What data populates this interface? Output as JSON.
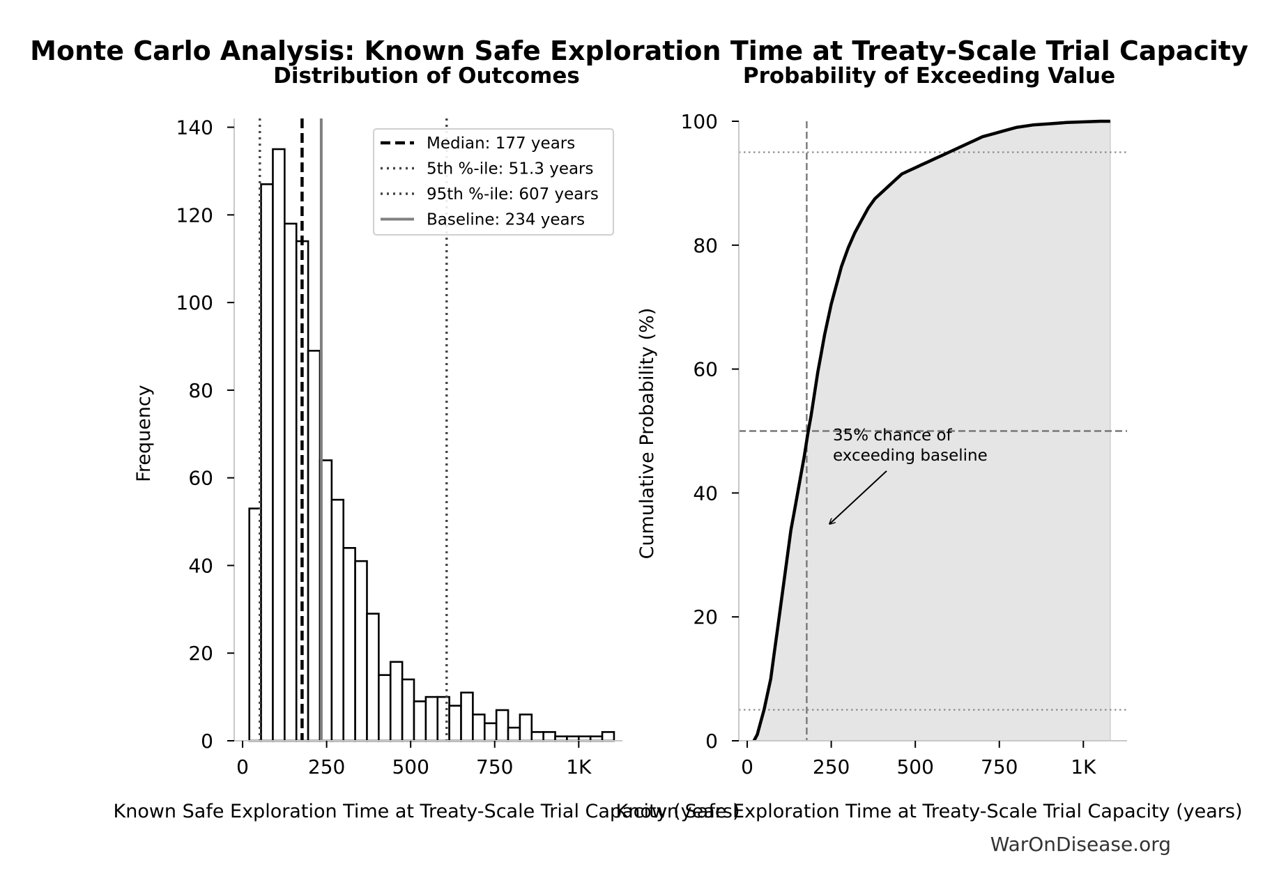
{
  "figure": {
    "title": "Monte Carlo Analysis: Known Safe Exploration Time at Treaty-Scale Trial Capacity",
    "watermark": "WarOnDisease.org"
  },
  "chart_data": [
    {
      "type": "bar",
      "title": "Distribution of Outcomes",
      "xlabel": "Known Safe Exploration Time at Treaty-Scale Trial Capacity (years)",
      "ylabel": "Frequency",
      "xlim": [
        -25,
        1130
      ],
      "ylim": [
        0,
        142
      ],
      "xticks": [
        0,
        250,
        500,
        750,
        1000
      ],
      "xtick_labels": [
        "0",
        "250",
        "500",
        "750",
        "1K"
      ],
      "yticks": [
        0,
        20,
        40,
        60,
        80,
        100,
        120,
        140
      ],
      "ytick_labels": [
        "0",
        "20",
        "40",
        "60",
        "80",
        "100",
        "120",
        "140"
      ],
      "bin_start": 20,
      "bin_width": 35,
      "values": [
        53,
        127,
        135,
        118,
        114,
        89,
        64,
        55,
        44,
        41,
        29,
        15,
        18,
        14,
        9,
        10,
        10,
        8,
        11,
        6,
        4,
        7,
        3,
        6,
        2,
        2,
        1,
        1,
        1,
        1,
        2
      ],
      "reference_lines": [
        {
          "label": "Median: 177 years",
          "value": 177,
          "style": "dashed",
          "color": "#000000"
        },
        {
          "label": "5th %-ile: 51.3 years",
          "value": 51.3,
          "style": "dotted",
          "color": "#444444"
        },
        {
          "label": "95th %-ile: 607 years",
          "value": 607,
          "style": "dotted",
          "color": "#444444"
        },
        {
          "label": "Baseline: 234 years",
          "value": 234,
          "style": "solid",
          "color": "#808080"
        }
      ],
      "legend": "top-right",
      "grid": false
    },
    {
      "type": "area",
      "title": "Probability of Exceeding Value",
      "xlabel": "Known Safe Exploration Time at Treaty-Scale Trial Capacity (years)",
      "ylabel": "Cumulative Probability (%)",
      "xlim": [
        -25,
        1130
      ],
      "ylim": [
        0,
        100
      ],
      "xticks": [
        0,
        250,
        500,
        750,
        1000
      ],
      "xtick_labels": [
        "0",
        "250",
        "500",
        "750",
        "1K"
      ],
      "yticks": [
        0,
        20,
        40,
        60,
        80,
        100
      ],
      "ytick_labels": [
        "0",
        "20",
        "40",
        "60",
        "80",
        "100"
      ],
      "x": [
        20,
        30,
        40,
        50,
        60,
        70,
        80,
        90,
        100,
        110,
        120,
        130,
        140,
        150,
        160,
        170,
        180,
        190,
        200,
        210,
        220,
        230,
        240,
        250,
        260,
        270,
        280,
        300,
        320,
        340,
        360,
        380,
        400,
        420,
        440,
        460,
        480,
        500,
        520,
        540,
        560,
        580,
        600,
        620,
        640,
        660,
        680,
        700,
        720,
        740,
        760,
        780,
        800,
        850,
        900,
        950,
        1000,
        1050,
        1080
      ],
      "y": [
        0,
        1,
        3,
        5,
        7.5,
        10,
        14,
        18,
        22,
        26,
        30,
        34,
        37,
        40,
        43,
        46,
        49.5,
        52.5,
        56,
        59.5,
        62.5,
        65.5,
        68,
        70.5,
        72.5,
        74.5,
        76.5,
        79.5,
        82,
        84,
        86,
        87.5,
        88.5,
        89.5,
        90.5,
        91.5,
        92,
        92.5,
        93,
        93.5,
        94,
        94.5,
        95,
        95.5,
        96,
        96.5,
        97,
        97.5,
        97.8,
        98.1,
        98.4,
        98.7,
        99,
        99.4,
        99.6,
        99.8,
        99.9,
        100,
        100
      ],
      "reference_lines": [
        {
          "orientation": "vertical",
          "value": 177,
          "style": "dashed",
          "color": "#777777"
        },
        {
          "orientation": "horizontal",
          "value": 50,
          "style": "dashed",
          "color": "#777777"
        },
        {
          "orientation": "horizontal",
          "value": 5,
          "style": "dotted",
          "color": "#888888"
        },
        {
          "orientation": "horizontal",
          "value": 95,
          "style": "dotted",
          "color": "#888888"
        }
      ],
      "annotation": {
        "lines": [
          "35% chance of",
          "exceeding baseline"
        ],
        "text_at": [
          255,
          48.5
        ],
        "arrow_to": [
          245,
          35
        ]
      },
      "fill_color": "#e5e5e5",
      "grid": false
    }
  ]
}
